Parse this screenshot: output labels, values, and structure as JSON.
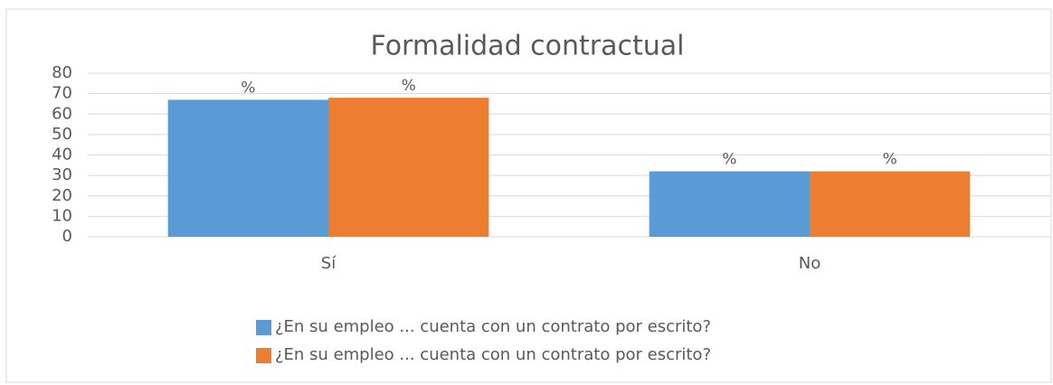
{
  "chart_data": {
    "type": "bar",
    "title": "Formalidad contractual",
    "categories": [
      "Sí",
      "No"
    ],
    "series": [
      {
        "name": "¿En su empleo ... cuenta con un contrato por escrito?",
        "color": "#5b9bd5",
        "values": [
          67,
          32
        ],
        "value_labels": [
          "%",
          "%"
        ]
      },
      {
        "name": "¿En su empleo ... cuenta con un contrato por escrito?",
        "color": "#ed7d31",
        "values": [
          68,
          32
        ],
        "value_labels": [
          "%",
          "%"
        ]
      }
    ],
    "ylim": [
      0,
      80
    ],
    "yticks": [
      0,
      10,
      20,
      30,
      40,
      50,
      60,
      70,
      80
    ],
    "grid": true,
    "legend": "bottom"
  }
}
